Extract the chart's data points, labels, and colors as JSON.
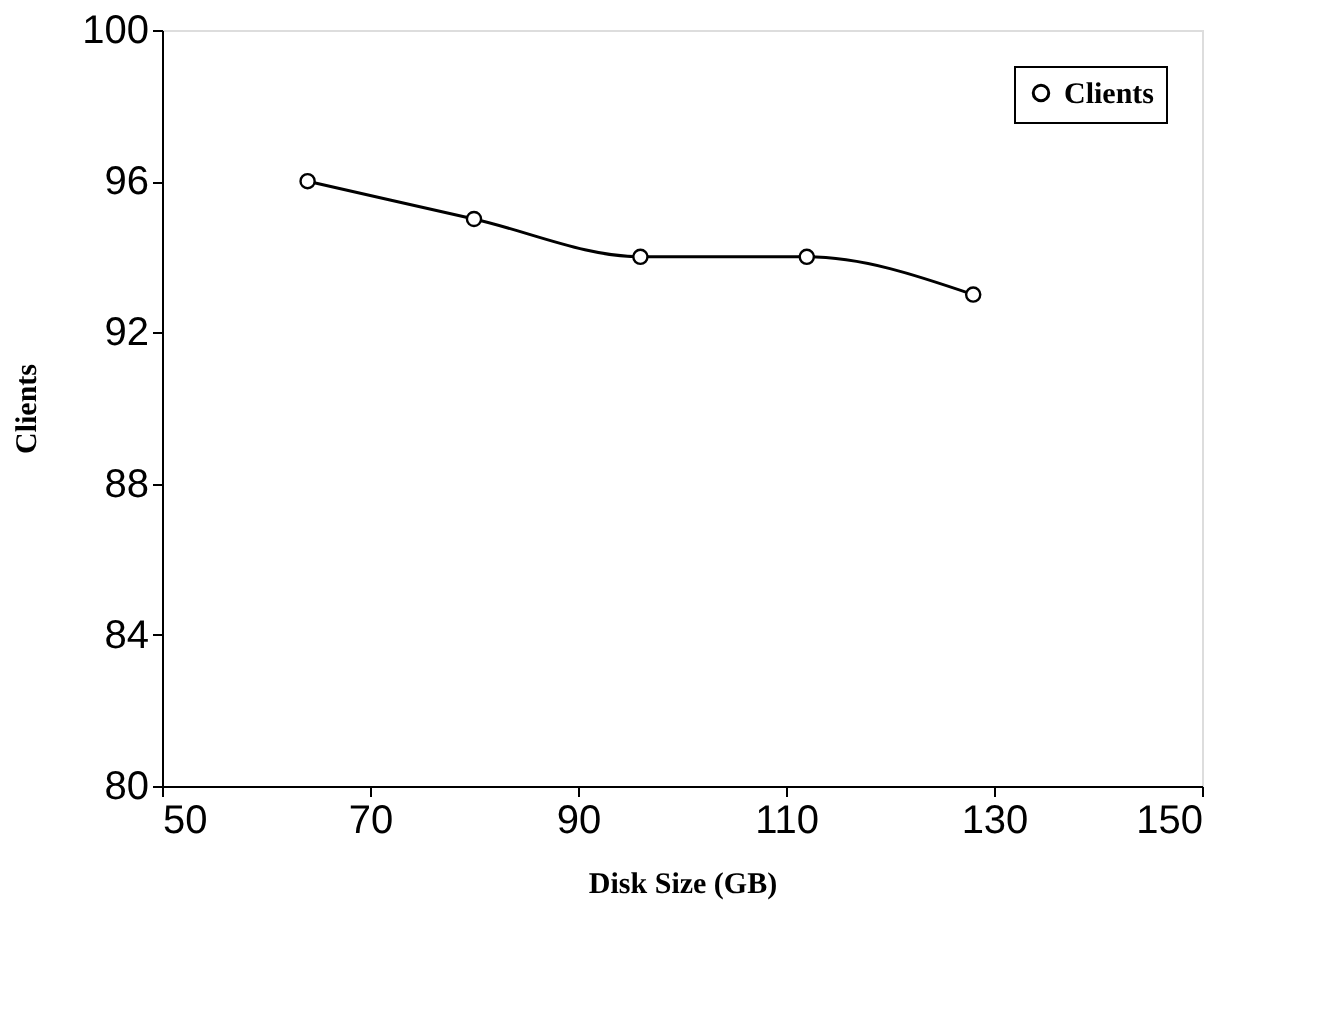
{
  "chart_data": {
    "type": "line",
    "xlabel": "Disk Size (GB)",
    "ylabel": "Clients",
    "x": [
      64,
      80,
      96,
      112,
      128
    ],
    "series": [
      {
        "name": "Clients",
        "color": "#000000",
        "values": [
          96,
          95,
          94,
          94,
          93
        ]
      }
    ],
    "xlim": [
      50,
      150
    ],
    "xticks": [
      50,
      70,
      90,
      110,
      130,
      150
    ],
    "ylim": [
      80,
      100
    ],
    "yticks": [
      80,
      84,
      88,
      92,
      96,
      100
    ],
    "grid": false,
    "legend": "top right",
    "marker": "circle",
    "line_style": "solid"
  }
}
